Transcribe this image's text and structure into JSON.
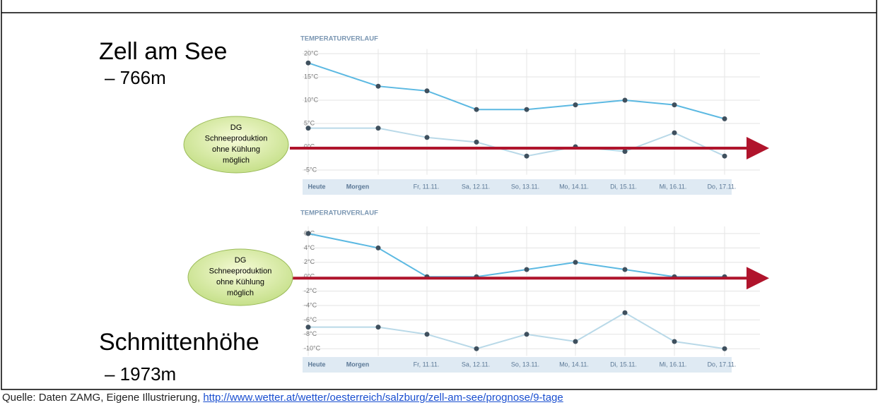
{
  "slide": {
    "place1": "Zell am See",
    "height1": "– 766m",
    "place2": "Schmittenhöhe",
    "height2": "– 1973m"
  },
  "callouts": [
    {
      "lines": [
        "DG",
        "Schneeproduktion",
        "ohne Kühlung",
        "möglich"
      ]
    },
    {
      "lines": [
        "DG",
        "Schneeproduktion",
        "ohne Kühlung",
        "möglich"
      ]
    }
  ],
  "chart_data": [
    {
      "type": "line",
      "title": "TEMPERATURVERLAUF",
      "categories": [
        "Heute",
        "Morgen",
        "Fr, 11.11.",
        "Sa, 12.11.",
        "So, 13.11.",
        "Mo, 14.11.",
        "Di, 15.11.",
        "Mi, 16.11.",
        "Do, 17.11."
      ],
      "series": [
        {
          "color": "#5cb9e2",
          "values": [
            18,
            13,
            12,
            8,
            8,
            9,
            10,
            9,
            6
          ]
        },
        {
          "color": "#b9d9e8",
          "values": [
            4,
            4,
            2,
            1,
            -2,
            0,
            -1,
            3,
            -2
          ]
        }
      ],
      "ylim": [
        -6,
        21
      ],
      "yticks": [
        {
          "value": 20,
          "label": "20°C"
        },
        {
          "value": 15,
          "label": "15°C"
        },
        {
          "value": 10,
          "label": "10°C"
        },
        {
          "value": 5,
          "label": "5°C"
        },
        {
          "value": 0,
          "label": "0°C"
        },
        {
          "value": -5,
          "label": "-5°C"
        }
      ],
      "grid": true
    },
    {
      "type": "line",
      "title": "TEMPERATURVERLAUF",
      "categories": [
        "Heute",
        "Morgen",
        "Fr, 11.11.",
        "Sa, 12.11.",
        "So, 13.11.",
        "Mo, 14.11.",
        "Di, 15.11.",
        "Mi, 16.11.",
        "Do, 17.11."
      ],
      "series": [
        {
          "color": "#5cb9e2",
          "values": [
            6,
            4,
            0,
            0,
            1,
            2,
            1,
            0,
            0
          ]
        },
        {
          "color": "#b9d9e8",
          "values": [
            -7,
            -7,
            -8,
            -10,
            -8,
            -9,
            -5,
            -9,
            -10
          ]
        }
      ],
      "ylim": [
        -11,
        7
      ],
      "yticks": [
        {
          "value": 6,
          "label": "6°C"
        },
        {
          "value": 4,
          "label": "4°C"
        },
        {
          "value": 2,
          "label": "2°C"
        },
        {
          "value": 0,
          "label": "0°C"
        },
        {
          "value": -2,
          "label": "-2°C"
        },
        {
          "value": -4,
          "label": "-4°C"
        },
        {
          "value": -6,
          "label": "-6°C"
        },
        {
          "value": -8,
          "label": "-8°C"
        },
        {
          "value": -10,
          "label": "-10°C"
        }
      ],
      "grid": true
    }
  ],
  "source": {
    "text": "Quelle: Daten ZAMG, Eigene Illustrierung,",
    "link": "http://www.wetter.at/wetter/oesterreich/salzburg/zell-am-see/prognose/9-tage"
  }
}
